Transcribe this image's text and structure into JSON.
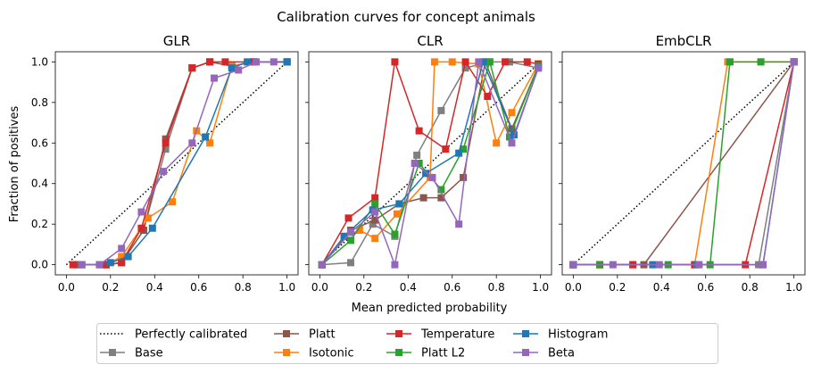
{
  "figure": {
    "suptitle": "Calibration curves for concept animals",
    "xlabel": "Mean predicted probability",
    "ylabel": "Fraction of positives"
  },
  "colors": {
    "Base": "#7f7f7f",
    "Platt": "#8c564b",
    "Temperature": "#d62728",
    "Histogram": "#1f77b4",
    "Beta": "#9467bd",
    "Isotonic": "#ff7f0e",
    "Platt L2": "#2ca02c"
  },
  "legend": {
    "entries": [
      "Perfectly calibrated",
      "Base",
      "Platt",
      "Isotonic",
      "Temperature",
      "Platt L2",
      "Histogram",
      "Beta"
    ],
    "placement": "bottom-center"
  },
  "chart_data": [
    {
      "type": "line",
      "title": "GLR",
      "xlim": [
        -0.05,
        1.05
      ],
      "ylim": [
        -0.05,
        1.05
      ],
      "xticks": [
        0.0,
        0.2,
        0.4,
        0.6,
        0.8,
        1.0
      ],
      "yticks": [
        0.0,
        0.2,
        0.4,
        0.6,
        0.8,
        1.0
      ],
      "reference": {
        "name": "Perfectly calibrated",
        "x": [
          0,
          1
        ],
        "y": [
          0,
          1
        ]
      },
      "series": [
        {
          "name": "Base",
          "x": [
            0.05,
            0.18,
            0.25,
            0.35,
            0.45,
            0.57,
            0.65,
            0.75,
            0.85,
            1.0
          ],
          "y": [
            0.0,
            0.0,
            0.01,
            0.17,
            0.57,
            0.97,
            1.0,
            0.98,
            1.0,
            1.0
          ]
        },
        {
          "name": "Platt",
          "x": [
            0.05,
            0.18,
            0.25,
            0.35,
            0.45,
            0.57,
            0.65,
            0.75,
            0.85,
            1.0
          ],
          "y": [
            0.0,
            0.0,
            0.01,
            0.17,
            0.62,
            0.97,
            1.0,
            0.98,
            1.0,
            1.0
          ]
        },
        {
          "name": "Isotonic",
          "x": [
            0.07,
            0.18,
            0.25,
            0.37,
            0.48,
            0.59,
            0.65,
            0.75,
            0.85,
            1.0
          ],
          "y": [
            0.0,
            0.0,
            0.04,
            0.23,
            0.31,
            0.66,
            0.6,
            0.98,
            1.0,
            1.0
          ]
        },
        {
          "name": "Temperature",
          "x": [
            0.03,
            0.18,
            0.25,
            0.34,
            0.45,
            0.57,
            0.65,
            0.72,
            0.85,
            1.0
          ],
          "y": [
            0.0,
            0.0,
            0.01,
            0.18,
            0.6,
            0.97,
            1.0,
            1.0,
            1.0,
            1.0
          ]
        },
        {
          "name": "Histogram",
          "x": [
            0.07,
            0.15,
            0.2,
            0.28,
            0.39,
            0.63,
            0.75,
            0.82,
            1.0
          ],
          "y": [
            0.0,
            0.0,
            0.01,
            0.04,
            0.18,
            0.63,
            0.97,
            1.0,
            1.0
          ]
        },
        {
          "name": "Beta",
          "x": [
            0.07,
            0.15,
            0.25,
            0.34,
            0.44,
            0.57,
            0.67,
            0.78,
            0.86,
            0.94
          ],
          "y": [
            0.0,
            0.0,
            0.08,
            0.26,
            0.46,
            0.6,
            0.92,
            0.96,
            1.0,
            1.0
          ]
        }
      ]
    },
    {
      "type": "line",
      "title": "CLR",
      "xlim": [
        -0.05,
        1.05
      ],
      "ylim": [
        -0.05,
        1.05
      ],
      "xticks": [
        0.0,
        0.2,
        0.4,
        0.6,
        0.8,
        1.0
      ],
      "yticks": [
        0.0,
        0.2,
        0.4,
        0.6,
        0.8,
        1.0
      ],
      "reference": {
        "name": "Perfectly calibrated",
        "x": [
          0,
          1
        ],
        "y": [
          0,
          1
        ]
      },
      "series": [
        {
          "name": "Base",
          "x": [
            0.01,
            0.14,
            0.24,
            0.34,
            0.44,
            0.55,
            0.66,
            0.77,
            0.86,
            0.99
          ],
          "y": [
            0.0,
            0.01,
            0.2,
            0.14,
            0.54,
            0.76,
            0.97,
            1.0,
            1.0,
            0.97
          ]
        },
        {
          "name": "Platt",
          "x": [
            0.01,
            0.14,
            0.25,
            0.36,
            0.47,
            0.55,
            0.65,
            0.75,
            0.87,
            0.99
          ],
          "y": [
            0.0,
            0.17,
            0.22,
            0.3,
            0.33,
            0.33,
            0.43,
            1.0,
            0.67,
            0.98
          ]
        },
        {
          "name": "Isotonic",
          "x": [
            0.01,
            0.11,
            0.18,
            0.25,
            0.35,
            0.5,
            0.52,
            0.6,
            0.72,
            0.8,
            0.87,
            0.99
          ],
          "y": [
            0.0,
            0.14,
            0.17,
            0.13,
            0.25,
            0.43,
            1.0,
            1.0,
            0.99,
            0.6,
            0.75,
            0.99
          ]
        },
        {
          "name": "Temperature",
          "x": [
            0.01,
            0.13,
            0.25,
            0.34,
            0.45,
            0.57,
            0.66,
            0.76,
            0.84,
            0.94,
            0.99
          ],
          "y": [
            0.0,
            0.23,
            0.33,
            1.0,
            0.66,
            0.57,
            1.0,
            0.83,
            1.0,
            1.0,
            0.99
          ]
        },
        {
          "name": "Platt L2",
          "x": [
            0.01,
            0.14,
            0.25,
            0.34,
            0.45,
            0.55,
            0.65,
            0.77,
            0.86,
            0.99
          ],
          "y": [
            0.0,
            0.12,
            0.3,
            0.15,
            0.5,
            0.37,
            0.57,
            1.0,
            0.63,
            0.98
          ]
        },
        {
          "name": "Histogram",
          "x": [
            0.01,
            0.11,
            0.24,
            0.36,
            0.48,
            0.63,
            0.74,
            0.88,
            0.99
          ],
          "y": [
            0.0,
            0.14,
            0.27,
            0.3,
            0.45,
            0.55,
            1.0,
            0.64,
            0.97
          ]
        },
        {
          "name": "Beta",
          "x": [
            0.01,
            0.14,
            0.25,
            0.34,
            0.43,
            0.51,
            0.63,
            0.72,
            0.87,
            0.99
          ],
          "y": [
            0.0,
            0.16,
            0.26,
            0.0,
            0.5,
            0.43,
            0.2,
            1.0,
            0.6,
            0.97
          ]
        }
      ]
    },
    {
      "type": "line",
      "title": "EmbCLR",
      "xlim": [
        -0.05,
        1.05
      ],
      "ylim": [
        -0.05,
        1.05
      ],
      "xticks": [
        0.0,
        0.2,
        0.4,
        0.6,
        0.8,
        1.0
      ],
      "yticks": [
        0.0,
        0.2,
        0.4,
        0.6,
        0.8,
        1.0
      ],
      "reference": {
        "name": "Perfectly calibrated",
        "x": [
          0,
          1
        ],
        "y": [
          0,
          1
        ]
      },
      "series": [
        {
          "name": "Base",
          "x": [
            0.0,
            0.12,
            0.84,
            1.0
          ],
          "y": [
            0.0,
            0.0,
            0.0,
            1.0
          ]
        },
        {
          "name": "Platt",
          "x": [
            0.0,
            0.32,
            1.0
          ],
          "y": [
            0.0,
            0.0,
            1.0
          ]
        },
        {
          "name": "Isotonic",
          "x": [
            0.0,
            0.12,
            0.27,
            0.55,
            0.7,
            0.85,
            1.0
          ],
          "y": [
            0.0,
            0.0,
            0.0,
            0.0,
            1.0,
            1.0,
            1.0
          ]
        },
        {
          "name": "Temperature",
          "x": [
            0.0,
            0.12,
            0.27,
            0.55,
            0.78,
            1.0
          ],
          "y": [
            0.0,
            0.0,
            0.0,
            0.0,
            0.0,
            1.0
          ]
        },
        {
          "name": "Platt L2",
          "x": [
            0.0,
            0.12,
            0.43,
            0.62,
            0.71,
            0.85,
            1.0
          ],
          "y": [
            0.0,
            0.0,
            0.0,
            0.0,
            1.0,
            1.0,
            1.0
          ]
        },
        {
          "name": "Histogram",
          "x": [
            0.0,
            0.36,
            0.56,
            0.86,
            1.0
          ],
          "y": [
            0.0,
            0.0,
            0.0,
            0.0,
            1.0
          ]
        },
        {
          "name": "Beta",
          "x": [
            0.0,
            0.18,
            0.39,
            0.57,
            0.86,
            1.0
          ],
          "y": [
            0.0,
            0.0,
            0.0,
            0.0,
            0.0,
            1.0
          ]
        }
      ]
    }
  ]
}
